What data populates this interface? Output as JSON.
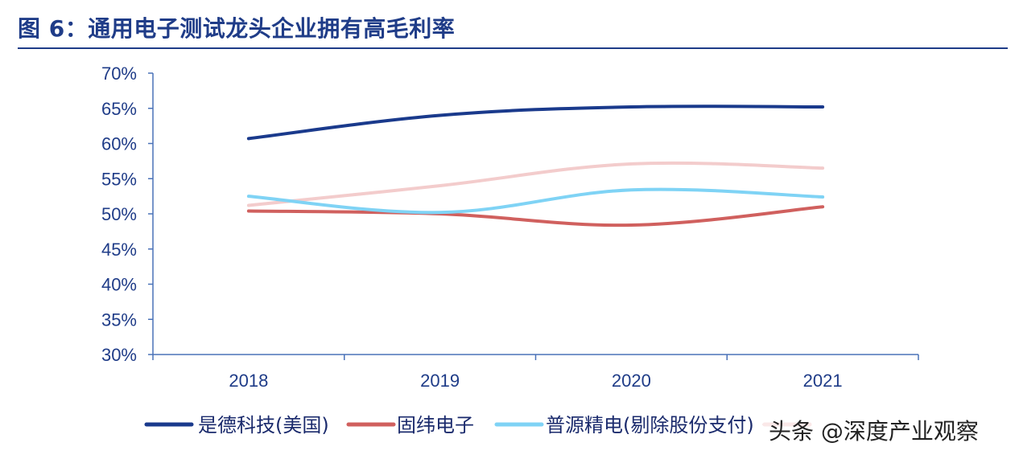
{
  "header": {
    "title": "图 6：通用电子测试龙头企业拥有高毛利率"
  },
  "watermark": "头条 @深度产业观察",
  "chart_data": {
    "type": "line",
    "categories": [
      "2018",
      "2019",
      "2020",
      "2021"
    ],
    "ylim": [
      0.3,
      0.7
    ],
    "yticks": [
      "30%",
      "35%",
      "40%",
      "45%",
      "50%",
      "55%",
      "60%",
      "65%",
      "70%"
    ],
    "ytick_values": [
      0.3,
      0.35,
      0.4,
      0.45,
      0.5,
      0.55,
      0.6,
      0.65,
      0.7
    ],
    "legend_position": "bottom",
    "series": [
      {
        "name": "是德科技(美国)",
        "color": "#1a3a8c",
        "values": [
          0.607,
          0.64,
          0.652,
          0.652
        ]
      },
      {
        "name": "固纬电子",
        "color": "#d0605e",
        "values": [
          0.504,
          0.5,
          0.484,
          0.51
        ]
      },
      {
        "name": "普源精电(剔除股份支付)",
        "color": "#7fd3f5",
        "values": [
          0.525,
          0.502,
          0.534,
          0.524
        ]
      },
      {
        "name": "",
        "color": "#f3cccc",
        "values": [
          0.512,
          0.54,
          0.571,
          0.565
        ]
      }
    ]
  }
}
